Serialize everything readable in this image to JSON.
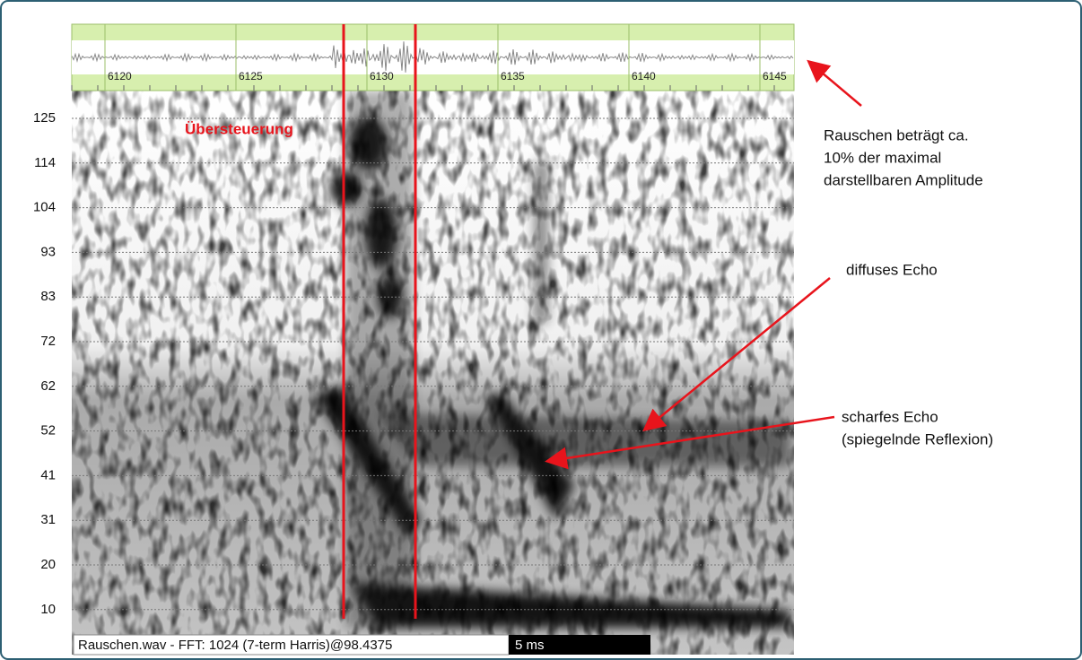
{
  "waveform": {
    "ticks": [
      "6120",
      "6125",
      "6130",
      "6135",
      "6140",
      "6145"
    ]
  },
  "spectrogram": {
    "yticks": [
      "125",
      "114",
      "104",
      "93",
      "83",
      "72",
      "62",
      "52",
      "41",
      "31",
      "20",
      "10"
    ],
    "overload_label": "Übersteuerung"
  },
  "annotations": [
    {
      "lines": [
        "Rauschen beträgt ca.",
        "10% der maximal",
        "darstellbaren Amplitude"
      ]
    },
    {
      "lines": [
        "diffuses Echo"
      ]
    },
    {
      "lines": [
        "scharfes Echo",
        "(spiegelnde Reflexion)"
      ]
    }
  ],
  "status_bar": {
    "file_info": "Rauschen.wav - FFT: 1024 (7-term Harris)@98.4375",
    "scale": "5 ms"
  }
}
